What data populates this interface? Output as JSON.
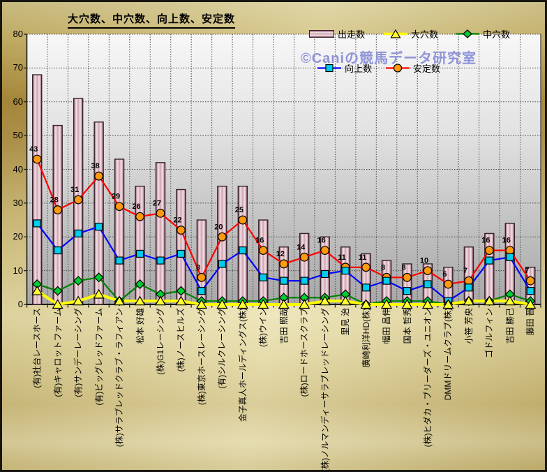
{
  "title": "大穴数、中穴数、向上数、安定数",
  "watermark": "©Caniの競馬データ研究室",
  "legend": {
    "items": [
      {
        "label": "出走数",
        "swatch": "bar"
      },
      {
        "label": "大穴数",
        "swatch": "triangle"
      },
      {
        "label": "中穴数",
        "swatch": "diamond"
      },
      {
        "label": "向上数",
        "swatch": "square"
      },
      {
        "label": "安定数",
        "swatch": "circle"
      }
    ]
  },
  "colors": {
    "bar_border": "#35202c",
    "ooana_line": "#ffff00",
    "ooana_marker": "#ffff33",
    "chuana_line": "#008000",
    "chuana_marker": "#00cc33",
    "koujou_line": "#0000ff",
    "koujou_marker": "#00ccee",
    "antei_line": "#ff0000",
    "antei_marker": "#ff9911",
    "watermark": "#8f94d9"
  },
  "chart_data": {
    "type": "bar",
    "title": "大穴数、中穴数、向上数、安定数",
    "xlabel": "",
    "ylabel": "",
    "ylim": [
      0,
      80
    ],
    "ytick_step": 10,
    "yticks": [
      0,
      10,
      20,
      30,
      40,
      50,
      60,
      70,
      80
    ],
    "grid": true,
    "legend_position": "top-right",
    "categories": [
      "(有)社台レースホース",
      "(有)キャロットファーム",
      "(有)サンデーレーシング",
      "(有)ビッグレッドファーム",
      "(株)サラブレッドクラブ・ラフィアン",
      "松本 好雄",
      "(株)G1レーシング",
      "(株)ノースヒルズ",
      "(株)東京ホースレーシング",
      "(有)シルクレーシング",
      "金子真人ホールディングス(株)",
      "(株)ウイン",
      "吉田 照哉",
      "(株)ロードホースクラブ",
      "(株)ノルマンディーサラブレッドレーシング",
      "里見 治",
      "廣崎利洋HD(株)",
      "幅田 昌伸",
      "国本 哲秀",
      "(株)ヒダカ・ブリーダーズ・ユニオン",
      "DMMドリームクラブ(株)",
      "小笹 芳央",
      "ゴドルフィン",
      "吉田 勝己",
      "藤田 晋"
    ],
    "series": [
      {
        "name": "出走数",
        "type": "bar",
        "values": [
          68,
          53,
          61,
          54,
          43,
          35,
          42,
          34,
          25,
          35,
          35,
          25,
          17,
          21,
          20,
          17,
          15,
          13,
          12,
          12,
          11,
          17,
          21,
          24,
          11
        ]
      },
      {
        "name": "大穴数",
        "type": "line",
        "marker": "triangle",
        "values": [
          4,
          0,
          1,
          3,
          1,
          1,
          1,
          1,
          0,
          0,
          0,
          0,
          0,
          0,
          1,
          1,
          0,
          0,
          0,
          0,
          0,
          1,
          1,
          1,
          0
        ]
      },
      {
        "name": "中穴数",
        "type": "line",
        "marker": "diamond",
        "values": [
          6,
          4,
          7,
          8,
          1,
          6,
          3,
          4,
          1,
          1,
          1,
          1,
          2,
          2,
          2,
          3,
          0,
          1,
          1,
          1,
          0,
          1,
          1,
          3,
          1
        ]
      },
      {
        "name": "向上数",
        "type": "line",
        "marker": "square",
        "values": [
          24,
          16,
          21,
          23,
          13,
          15,
          13,
          15,
          4,
          12,
          16,
          8,
          7,
          7,
          9,
          10,
          5,
          7,
          4,
          6,
          1,
          5,
          13,
          14,
          4
        ]
      },
      {
        "name": "安定数",
        "type": "line",
        "marker": "circle",
        "data_labels": true,
        "values": [
          43,
          28,
          31,
          38,
          29,
          26,
          27,
          22,
          8,
          20,
          25,
          16,
          12,
          14,
          16,
          11,
          11,
          8,
          8,
          10,
          6,
          7,
          16,
          16,
          7
        ]
      }
    ]
  }
}
